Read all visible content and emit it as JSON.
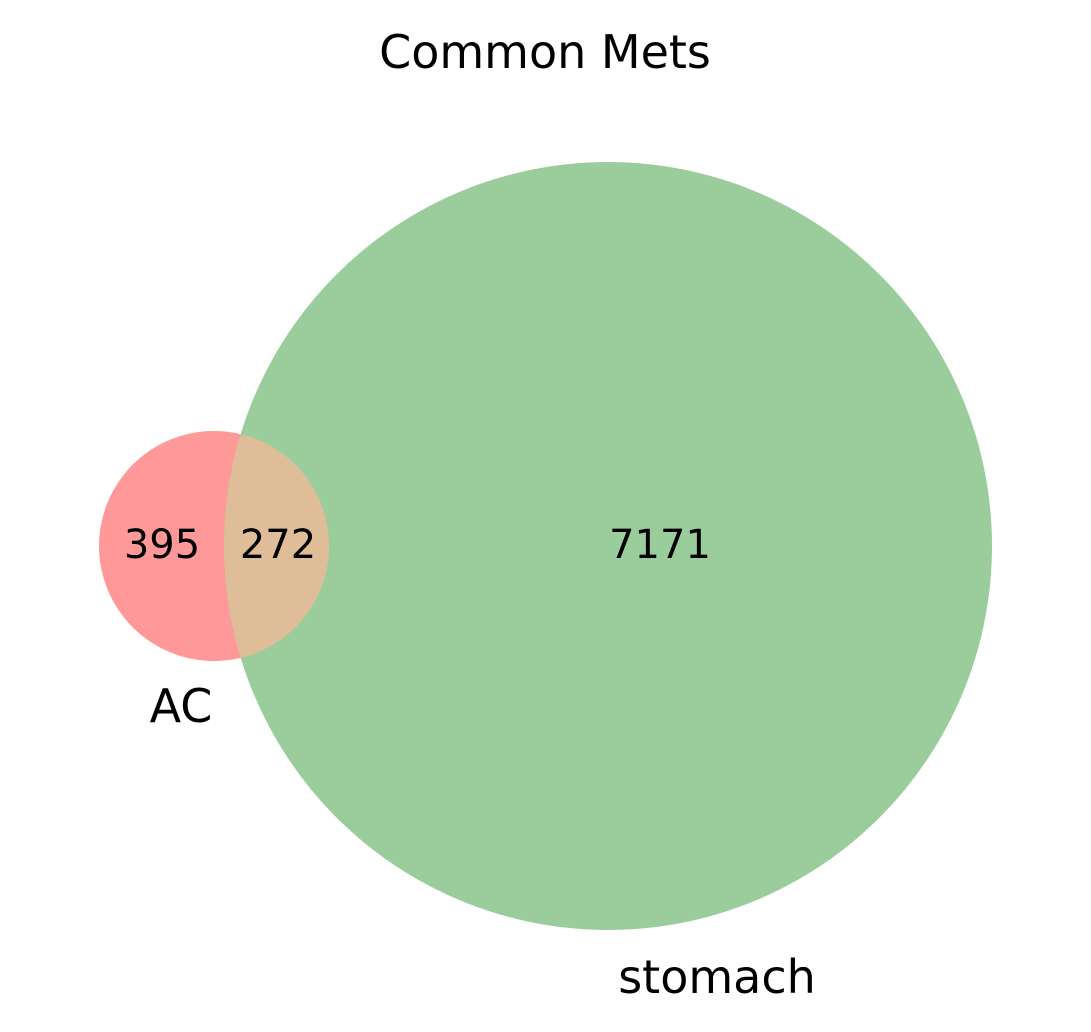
{
  "title": "Common Mets",
  "sets": [
    {
      "name": "AC",
      "color": "#ff9999"
    },
    {
      "name": "stomach",
      "color": "#9bcc9b"
    }
  ],
  "intersection_color": "#e0bd99",
  "regions": {
    "ac_only": "395",
    "both": "272",
    "stomach_only": "7171"
  }
}
